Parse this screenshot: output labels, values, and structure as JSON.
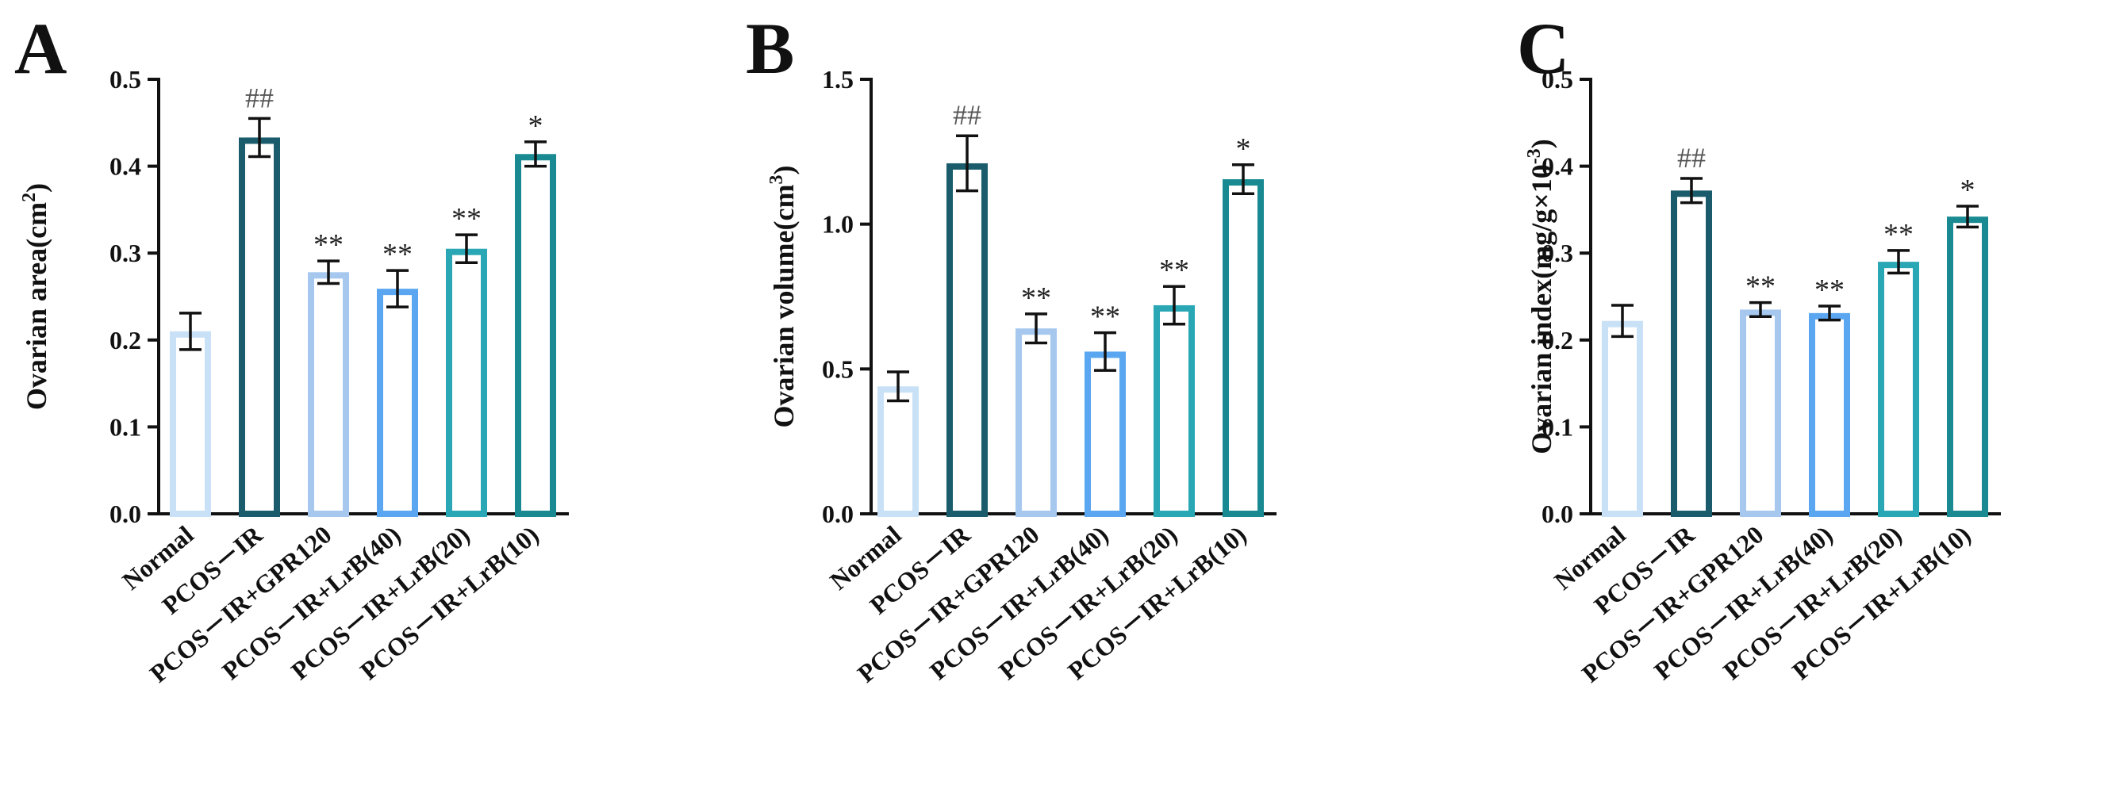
{
  "chart_data": [
    {
      "panel": "A",
      "type": "bar",
      "categories": [
        "Normal",
        "PCOS－IR",
        "PCOS－IR+GPR120",
        "PCOS－IR+LrB(40)",
        "PCOS－IR+LrB(20)",
        "PCOS－IR+LrB(10)"
      ],
      "values": [
        0.21,
        0.433,
        0.278,
        0.259,
        0.305,
        0.414
      ],
      "errors": [
        0.021,
        0.022,
        0.013,
        0.021,
        0.016,
        0.014
      ],
      "significance": [
        "",
        "##",
        "**",
        "**",
        "**",
        "*"
      ],
      "ylabel_main": "Ovarian area(cm",
      "ylabel_sup": "2",
      "ylabel_tail": ")",
      "ylim": [
        0,
        0.5
      ],
      "yticks": [
        "0.0",
        "0.1",
        "0.2",
        "0.3",
        "0.4",
        "0.5"
      ],
      "ytick_values": [
        0,
        0.1,
        0.2,
        0.3,
        0.4,
        0.5
      ]
    },
    {
      "panel": "B",
      "type": "bar",
      "categories": [
        "Normal",
        "PCOS－IR",
        "PCOS－IR+GPR120",
        "PCOS－IR+LrB(40)",
        "PCOS－IR+LrB(20)",
        "PCOS－IR+LrB(10)"
      ],
      "values": [
        0.44,
        1.21,
        0.64,
        0.56,
        0.72,
        1.155
      ],
      "errors": [
        0.05,
        0.095,
        0.05,
        0.065,
        0.065,
        0.05
      ],
      "significance": [
        "",
        "##",
        "**",
        "**",
        "**",
        "*"
      ],
      "ylabel_main": "Ovarian volume(cm",
      "ylabel_sup": "3",
      "ylabel_tail": ")",
      "ylim": [
        0,
        1.5
      ],
      "yticks": [
        "0.0",
        "0.5",
        "1.0",
        "1.5"
      ],
      "ytick_values": [
        0,
        0.5,
        1.0,
        1.5
      ]
    },
    {
      "panel": "C",
      "type": "bar",
      "categories": [
        "Normal",
        "PCOS－IR",
        "PCOS－IR+GPR120",
        "PCOS－IR+LrB(40)",
        "PCOS－IR+LrB(20)",
        "PCOS－IR+LrB(10)"
      ],
      "values": [
        0.222,
        0.372,
        0.235,
        0.231,
        0.29,
        0.342
      ],
      "errors": [
        0.018,
        0.014,
        0.008,
        0.008,
        0.013,
        0.012
      ],
      "significance": [
        "",
        "##",
        "**",
        "**",
        "**",
        "*"
      ],
      "ylabel_main": "Ovarian index(mg/g×10",
      "ylabel_sup": "-3",
      "ylabel_tail": ")",
      "ylim": [
        0,
        0.5
      ],
      "yticks": [
        "0.0",
        "0.1",
        "0.2",
        "0.3",
        "0.4",
        "0.5"
      ],
      "ytick_values": [
        0,
        0.1,
        0.2,
        0.3,
        0.4,
        0.5
      ]
    }
  ],
  "bar_colors": [
    "#c9e1f6",
    "#1a5c6b",
    "#a6c8ef",
    "#5aa6f0",
    "#2aa7b5",
    "#1a8a92"
  ]
}
